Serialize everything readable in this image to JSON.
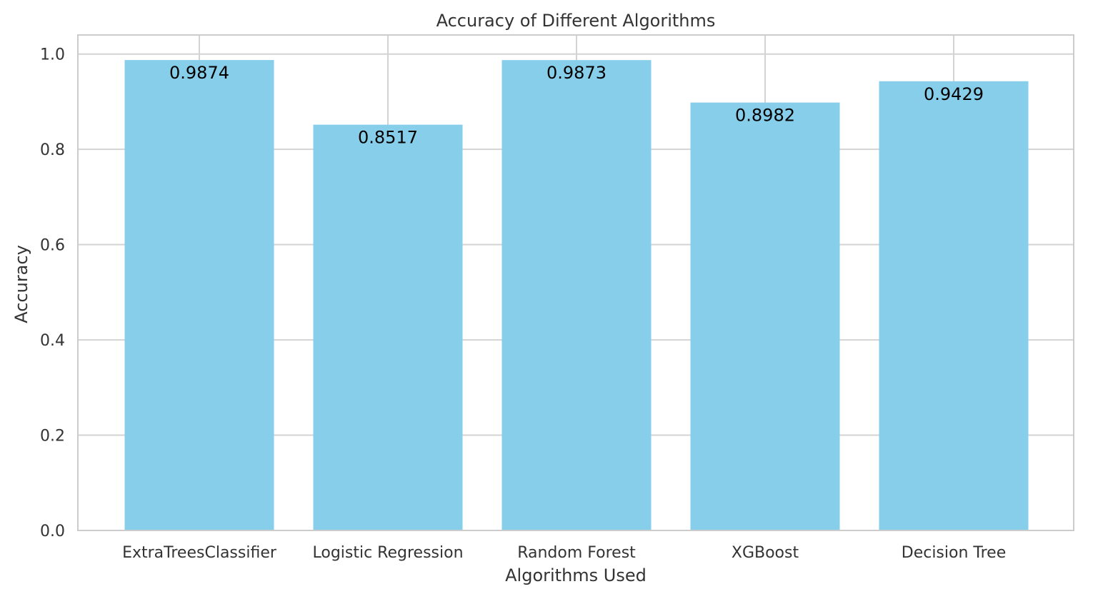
{
  "chart_data": {
    "type": "bar",
    "title": "Accuracy of Different Algorithms",
    "xlabel": "Algorithms Used",
    "ylabel": "Accuracy",
    "categories": [
      "ExtraTreesClassifier",
      "Logistic Regression",
      "Random Forest",
      "XGBoost",
      "Decision Tree"
    ],
    "values": [
      0.9874,
      0.8517,
      0.9873,
      0.8982,
      0.9429
    ],
    "data_labels": [
      "0.9874",
      "0.8517",
      "0.9873",
      "0.8982",
      "0.9429"
    ],
    "yticks": [
      0.0,
      0.2,
      0.4,
      0.6,
      0.8,
      1.0
    ],
    "ytick_labels": [
      "0.0",
      "0.2",
      "0.4",
      "0.6",
      "0.8",
      "1.0"
    ],
    "ylim": [
      0,
      1.04
    ],
    "grid": true,
    "legend": "none",
    "colors": {
      "bar": "#87ceeb",
      "grid": "#d3d3d3",
      "frame": "#cccccc",
      "text": "#333333",
      "label": "#000000"
    }
  }
}
